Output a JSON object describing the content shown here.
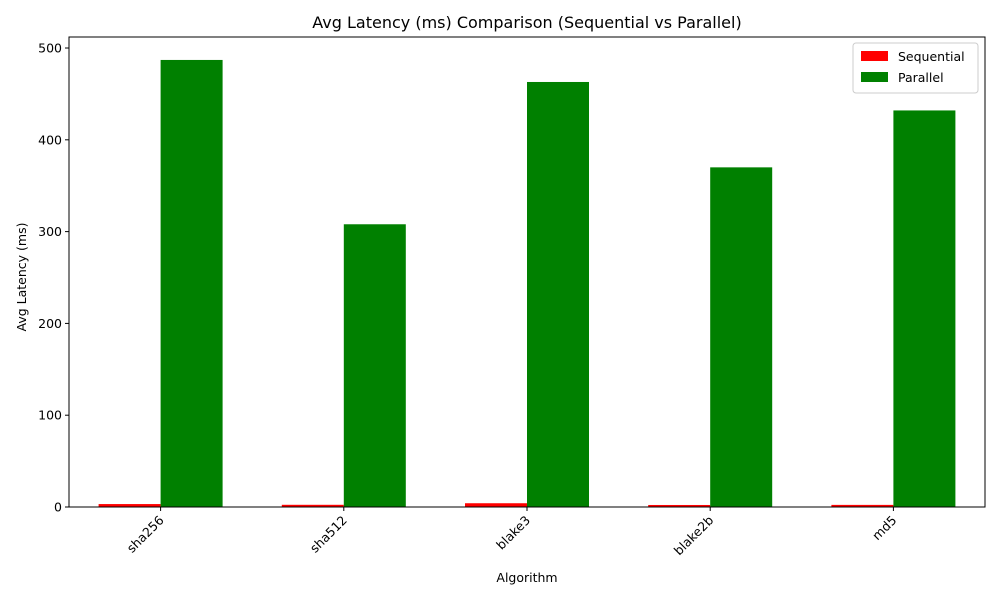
{
  "chart_data": {
    "type": "bar",
    "title": "Avg Latency (ms) Comparison (Sequential vs Parallel)",
    "xlabel": "Algorithm",
    "ylabel": "Avg Latency (ms)",
    "categories": [
      "sha256",
      "sha512",
      "blake3",
      "blake2b",
      "md5"
    ],
    "series": [
      {
        "name": "Sequential",
        "color": "#ff0000",
        "values": [
          3.2,
          2.4,
          4.1,
          2.2,
          2.3
        ]
      },
      {
        "name": "Parallel",
        "color": "#008000",
        "values": [
          487,
          308,
          463,
          370,
          432
        ]
      }
    ],
    "ylim": [
      0,
      512
    ],
    "yticks": [
      0,
      100,
      200,
      300,
      400,
      500
    ],
    "grid": false,
    "legend_position": "top-right"
  }
}
